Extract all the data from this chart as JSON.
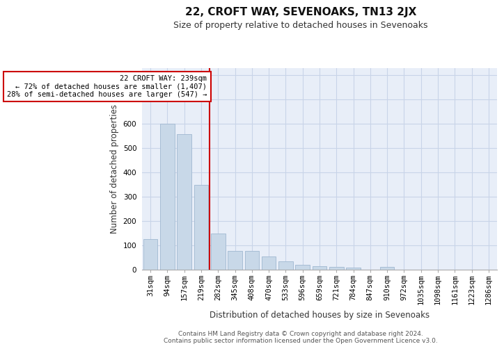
{
  "title1": "22, CROFT WAY, SEVENOAKS, TN13 2JX",
  "title2": "Size of property relative to detached houses in Sevenoaks",
  "xlabel": "Distribution of detached houses by size in Sevenoaks",
  "ylabel": "Number of detached properties",
  "categories": [
    "31sqm",
    "94sqm",
    "157sqm",
    "219sqm",
    "282sqm",
    "345sqm",
    "408sqm",
    "470sqm",
    "533sqm",
    "596sqm",
    "659sqm",
    "721sqm",
    "784sqm",
    "847sqm",
    "910sqm",
    "972sqm",
    "1035sqm",
    "1098sqm",
    "1161sqm",
    "1223sqm",
    "1286sqm"
  ],
  "values": [
    125,
    600,
    557,
    347,
    148,
    75,
    75,
    52,
    33,
    18,
    14,
    10,
    8,
    0,
    10,
    0,
    0,
    0,
    0,
    0,
    0
  ],
  "bar_color": "#c8d8e8",
  "bar_edge_color": "#a0b8d0",
  "vline_x_index": 3,
  "vline_color": "#cc0000",
  "annotation_text": "22 CROFT WAY: 239sqm\n← 72% of detached houses are smaller (1,407)\n28% of semi-detached houses are larger (547) →",
  "annotation_box_color": "#ffffff",
  "annotation_box_edge": "#cc0000",
  "ylim": [
    0,
    830
  ],
  "yticks": [
    0,
    100,
    200,
    300,
    400,
    500,
    600,
    700,
    800
  ],
  "grid_color": "#c8d4e8",
  "background_color": "#e8eef8",
  "footer": "Contains HM Land Registry data © Crown copyright and database right 2024.\nContains public sector information licensed under the Open Government Licence v3.0.",
  "title1_fontsize": 11,
  "title2_fontsize": 9,
  "xlabel_fontsize": 8.5,
  "ylabel_fontsize": 8.5,
  "tick_fontsize": 7.5,
  "annotation_fontsize": 7.5,
  "footer_fontsize": 6.5
}
